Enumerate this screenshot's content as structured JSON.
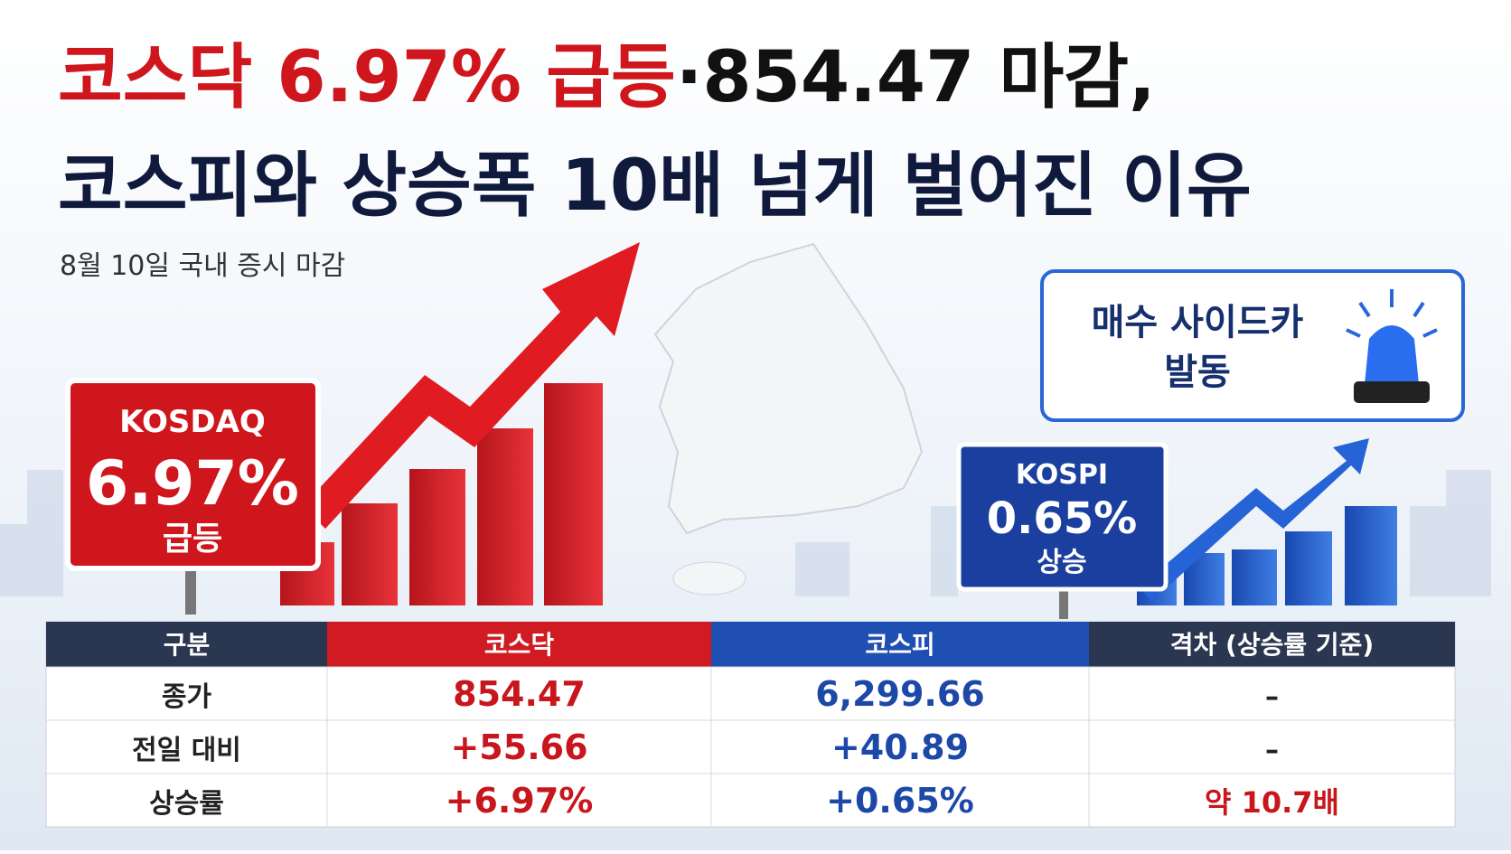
{
  "title": {
    "line1_highlight": "코스닥 6.97% 급등",
    "line1_rest": "·854.47 마감,",
    "line2": "코스피와 상승폭 10배 넘게 벌어진 이유"
  },
  "subtitle": "8월 10일 국내 증시 마감",
  "kosdaq_sign": {
    "name": "KOSDAQ",
    "change": "6.97%",
    "label": "급등"
  },
  "kospi_sign": {
    "name": "KOSPI",
    "change": "0.65%",
    "label": "상승"
  },
  "callout": {
    "lines": [
      "매수 사이드카",
      "발동"
    ]
  },
  "table": {
    "header": [
      "구분",
      "코스닥",
      "코스피",
      "격차 (상승률 기준)"
    ],
    "rows": [
      [
        "종가",
        "854.47",
        "6,299.66",
        "–"
      ],
      [
        "전일 대비",
        "+55.66",
        "+40.89",
        "–"
      ],
      [
        "상승률",
        "+6.97%",
        "+0.65%",
        "약 10.7배"
      ]
    ]
  }
}
